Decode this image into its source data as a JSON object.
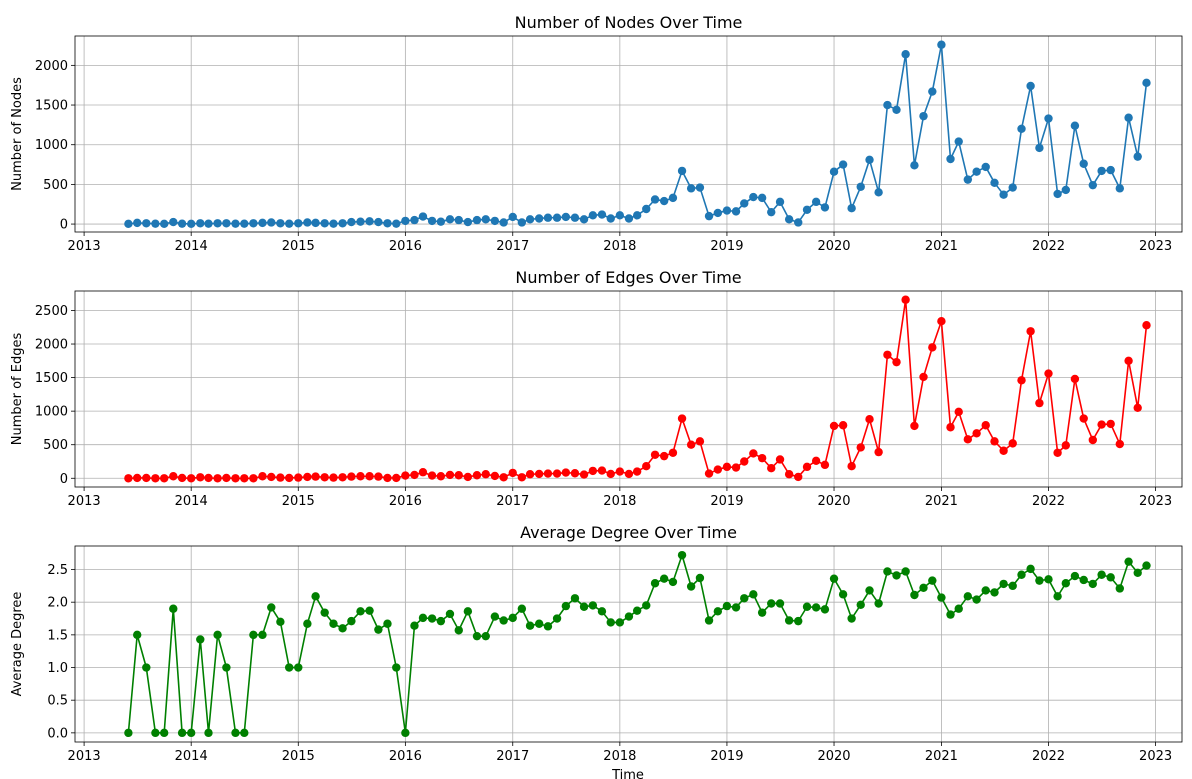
{
  "chart_data": [
    {
      "type": "line",
      "title": "Number of Nodes Over Time",
      "xlabel": "",
      "ylabel": "Number of Nodes",
      "color": "#1f77b4",
      "grid": true,
      "marker": "circle",
      "xlim": [
        "2012-12-01",
        "2023-04-01"
      ],
      "ylim": [
        -100,
        2370
      ],
      "xticks": [
        "2013",
        "2014",
        "2015",
        "2016",
        "2017",
        "2018",
        "2019",
        "2020",
        "2021",
        "2022",
        "2023"
      ],
      "yticks": [
        "0",
        "500",
        "1000",
        "1500",
        "2000"
      ],
      "start_month": "2013-06",
      "values": [
        3,
        15,
        10,
        5,
        3,
        25,
        5,
        3,
        10,
        5,
        10,
        10,
        5,
        5,
        10,
        15,
        20,
        10,
        5,
        10,
        20,
        15,
        10,
        5,
        10,
        25,
        30,
        35,
        25,
        10,
        5,
        40,
        50,
        95,
        40,
        30,
        60,
        50,
        25,
        50,
        60,
        40,
        20,
        90,
        20,
        60,
        70,
        80,
        80,
        90,
        80,
        60,
        110,
        120,
        70,
        110,
        70,
        110,
        190,
        310,
        290,
        330,
        670,
        450,
        460,
        100,
        140,
        170,
        160,
        260,
        340,
        330,
        150,
        280,
        60,
        20,
        180,
        280,
        210,
        660,
        750,
        200,
        470,
        810,
        400,
        1500,
        1440,
        2140,
        740,
        1360,
        1670,
        2260,
        820,
        1040,
        560,
        660,
        720,
        520,
        370,
        460,
        1200,
        1740,
        960,
        1330,
        380,
        430,
        1240,
        760,
        490,
        670,
        680,
        450,
        1340,
        850,
        1780
      ]
    },
    {
      "type": "line",
      "title": "Number of Edges Over Time",
      "xlabel": "",
      "ylabel": "Number of Edges",
      "color": "#ff0000",
      "grid": true,
      "marker": "circle",
      "xlim": [
        "2012-12-01",
        "2023-04-01"
      ],
      "ylim": [
        -130,
        2790
      ],
      "xticks": [
        "2013",
        "2014",
        "2015",
        "2016",
        "2017",
        "2018",
        "2019",
        "2020",
        "2021",
        "2022",
        "2023"
      ],
      "yticks": [
        "0",
        "500",
        "1000",
        "1500",
        "2000",
        "2500"
      ],
      "start_month": "2013-06",
      "values": [
        0,
        5,
        5,
        0,
        0,
        30,
        5,
        0,
        15,
        5,
        0,
        5,
        0,
        0,
        0,
        30,
        20,
        10,
        5,
        10,
        20,
        25,
        15,
        10,
        15,
        25,
        30,
        30,
        25,
        5,
        5,
        40,
        50,
        90,
        40,
        30,
        50,
        45,
        20,
        45,
        60,
        35,
        15,
        80,
        15,
        60,
        65,
        70,
        70,
        85,
        75,
        55,
        110,
        115,
        65,
        100,
        65,
        100,
        180,
        350,
        330,
        380,
        890,
        500,
        550,
        70,
        130,
        170,
        160,
        250,
        370,
        300,
        150,
        280,
        60,
        20,
        170,
        260,
        200,
        780,
        790,
        180,
        460,
        880,
        390,
        1840,
        1730,
        2660,
        780,
        1510,
        1950,
        2340,
        760,
        990,
        580,
        670,
        790,
        550,
        410,
        520,
        1460,
        2190,
        1120,
        1560,
        380,
        490,
        1480,
        890,
        570,
        800,
        810,
        510,
        1750,
        1050,
        2280
      ]
    },
    {
      "type": "line",
      "title": "Average Degree Over Time",
      "xlabel": "Time",
      "ylabel": "Average Degree",
      "color": "#008000",
      "grid": true,
      "marker": "circle",
      "xlim": [
        "2012-12-01",
        "2023-04-01"
      ],
      "ylim": [
        -0.14,
        2.86
      ],
      "xticks": [
        "2013",
        "2014",
        "2015",
        "2016",
        "2017",
        "2018",
        "2019",
        "2020",
        "2021",
        "2022",
        "2023"
      ],
      "yticks": [
        "0.0",
        "0.5",
        "1.0",
        "1.5",
        "2.0",
        "2.5"
      ],
      "start_month": "2013-06",
      "values": [
        0.0,
        1.5,
        1.0,
        0.0,
        0.0,
        1.9,
        0.0,
        0.0,
        1.43,
        0.0,
        1.5,
        1.0,
        0.0,
        0.0,
        1.5,
        1.5,
        1.92,
        1.7,
        1.0,
        1.0,
        1.67,
        2.09,
        1.84,
        1.67,
        1.6,
        1.71,
        1.86,
        1.87,
        1.58,
        1.67,
        1.0,
        0.0,
        1.64,
        1.76,
        1.75,
        1.71,
        1.82,
        1.57,
        1.86,
        1.48,
        1.48,
        1.78,
        1.72,
        1.76,
        1.9,
        1.64,
        1.67,
        1.63,
        1.75,
        1.94,
        2.06,
        1.93,
        1.95,
        1.86,
        1.69,
        1.69,
        1.78,
        1.87,
        1.95,
        2.29,
        2.36,
        2.31,
        2.72,
        2.24,
        2.37,
        1.72,
        1.86,
        1.94,
        1.92,
        2.06,
        2.12,
        1.84,
        1.98,
        1.98,
        1.72,
        1.71,
        1.93,
        1.92,
        1.89,
        2.36,
        2.12,
        1.75,
        1.96,
        2.18,
        1.98,
        2.47,
        2.41,
        2.47,
        2.11,
        2.22,
        2.33,
        2.07,
        1.81,
        1.9,
        2.09,
        2.04,
        2.18,
        2.15,
        2.28,
        2.25,
        2.42,
        2.51,
        2.33,
        2.35,
        2.09,
        2.29,
        2.4,
        2.34,
        2.28,
        2.42,
        2.38,
        2.21,
        2.62,
        2.45,
        2.56
      ]
    }
  ]
}
